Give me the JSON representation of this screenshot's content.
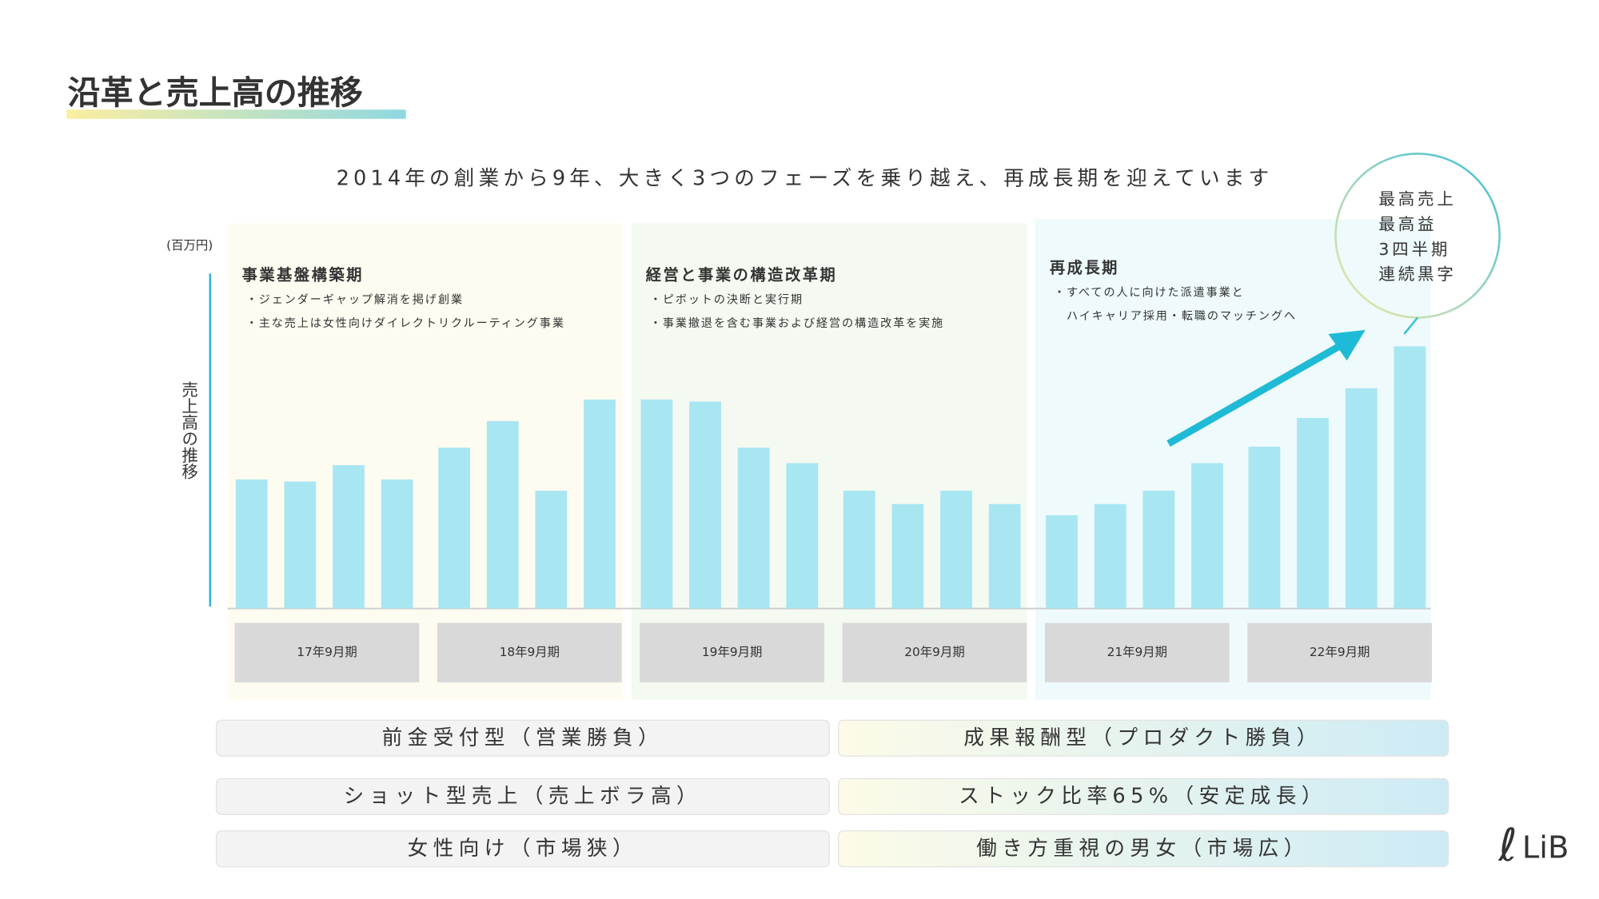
{
  "title": "沿革と売上高の推移",
  "subtitle": "2014年の創業から9年、大きく3つのフェーズを乗り越え、再成長期を迎えています",
  "phases": [
    {
      "title": "事業基盤構築期",
      "bullets": [
        "・ジェンダーギャップ解消を掲げ創業",
        "・主な売上は女性向けダイレクトリクルーティング事業"
      ]
    },
    {
      "title": "経営と事業の構造改革期",
      "bullets": [
        "・ピボットの決断と実行期",
        "・事業撤退を含む事業および経営の構造改革を実施"
      ]
    },
    {
      "title": "再成長期",
      "bullets": [
        "・すべての人に向けた派遣事業と",
        "　ハイキャリア採用・転職のマッチングへ"
      ]
    }
  ],
  "callout": [
    "最高売上",
    "最高益",
    "3四半期",
    "連続黒字"
  ],
  "chart_data": {
    "type": "bar",
    "unit": "(百万円)",
    "ylabel": "売上高の推移",
    "color": "#a8e6f2",
    "ylim": [
      0,
      270
    ],
    "groups": [
      {
        "label": "17年9月期",
        "values": [
          126,
          124,
          140,
          126
        ]
      },
      {
        "label": "18年9月期",
        "values": [
          157,
          183,
          115,
          204
        ]
      },
      {
        "label": "19年9月期",
        "values": [
          204,
          202,
          157,
          142
        ]
      },
      {
        "label": "20年9月期",
        "values": [
          115,
          102,
          115,
          102
        ]
      },
      {
        "label": "21年9月期",
        "values": [
          91,
          102,
          115,
          142
        ]
      },
      {
        "label": "22年9月期",
        "values": [
          158,
          186,
          215,
          256
        ]
      }
    ]
  },
  "comparison": [
    [
      "前金受付型（営業勝負）",
      "成果報酬型（プロダクト勝負）"
    ],
    [
      "ショット型売上（売上ボラ高）",
      "ストック比率65%（安定成長）"
    ],
    [
      "女性向け（市場狭）",
      "働き方重視の男女（市場広）"
    ]
  ],
  "logo": "LiB"
}
